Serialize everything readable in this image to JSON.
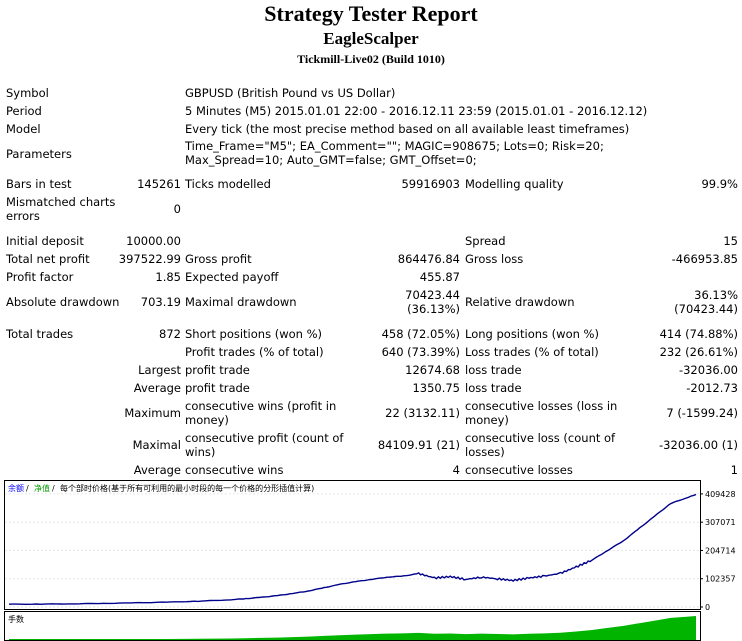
{
  "header": {
    "title": "Strategy Tester Report",
    "expert": "EagleScalper",
    "server": "Tickmill-Live02 (Build 1010)"
  },
  "info": {
    "symbol_label": "Symbol",
    "symbol": "GBPUSD (British Pound vs US Dollar)",
    "period_label": "Period",
    "period": "5 Minutes (M5) 2015.01.01 22:00 - 2016.12.11 23:59 (2015.01.01 - 2016.12.12)",
    "model_label": "Model",
    "model": "Every tick (the most precise method based on all available least timeframes)",
    "parameters_label": "Parameters",
    "parameters": "Time_Frame=\"M5\"; EA_Comment=\"\"; MAGIC=908675; Lots=0; Risk=20; Max_Spread=10; Auto_GMT=false; GMT_Offset=0;"
  },
  "tests": {
    "bars_label": "Bars in test",
    "bars": "145261",
    "ticks_label": "Ticks modelled",
    "ticks": "59916903",
    "quality_label": "Modelling quality",
    "quality": "99.9%",
    "mismatch_label": "Mismatched charts errors",
    "mismatch": "0"
  },
  "results": {
    "initial_deposit_label": "Initial deposit",
    "initial_deposit": "10000.00",
    "spread_label": "Spread",
    "spread": "15",
    "net_profit_label": "Total net profit",
    "net_profit": "397522.99",
    "gross_profit_label": "Gross profit",
    "gross_profit": "864476.84",
    "gross_loss_label": "Gross loss",
    "gross_loss": "-466953.85",
    "profit_factor_label": "Profit factor",
    "profit_factor": "1.85",
    "expected_payoff_label": "Expected payoff",
    "expected_payoff": "455.87",
    "abs_drawdown_label": "Absolute drawdown",
    "abs_drawdown": "703.19",
    "max_drawdown_label": "Maximal drawdown",
    "max_drawdown_1": "70423.44",
    "max_drawdown_2": "(36.13%)",
    "rel_drawdown_label": "Relative drawdown",
    "rel_drawdown_1": "36.13%",
    "rel_drawdown_2": "(70423.44)"
  },
  "trades": {
    "total_label": "Total trades",
    "total": "872",
    "short_label": "Short positions (won %)",
    "short": "458 (72.05%)",
    "long_label": "Long positions (won %)",
    "long": "414 (74.88%)",
    "profit_trades_label": "Profit trades (% of total)",
    "profit_trades": "640 (73.39%)",
    "loss_trades_label": "Loss trades (% of total)",
    "loss_trades": "232 (26.61%)",
    "largest_label": "Largest",
    "largest_profit_label": "profit trade",
    "largest_profit": "12674.68",
    "largest_loss_label": "loss trade",
    "largest_loss": "-32036.00",
    "average_label": "Average",
    "average_profit_label": "profit trade",
    "average_profit": "1350.75",
    "average_loss_label": "loss trade",
    "average_loss": "-2012.73",
    "maximum_label": "Maximum",
    "max_cons_wins_label": "consecutive wins (profit in money)",
    "max_cons_wins": "22 (3132.11)",
    "max_cons_losses_label": "consecutive losses (loss in money)",
    "max_cons_losses": "7 (-1599.24)",
    "maximal_label": "Maximal",
    "maximal_profit_label": "consecutive profit (count of wins)",
    "maximal_profit": "84109.91 (21)",
    "maximal_loss_label": "consecutive loss (count of losses)",
    "maximal_loss": "-32036.00 (1)",
    "average2_label": "Average",
    "avg_cons_wins_label": "consecutive wins",
    "avg_cons_wins": "4",
    "avg_cons_losses_label": "consecutive losses",
    "avg_cons_losses": "1"
  },
  "chart_data": {
    "type": "line",
    "legend": [
      "余额",
      "净值",
      "每个部时价格(基于所有可利用的最小时段的每一个价格的分形插值计算)"
    ],
    "lower_panel_label": "手数",
    "y_ticks": [
      "409428",
      "307071",
      "204714",
      "102357",
      "0"
    ],
    "ylim": [
      0,
      420000
    ],
    "x": [
      0,
      40,
      80,
      120,
      160,
      200,
      240,
      280,
      300,
      320,
      340,
      360,
      380,
      400,
      420,
      440,
      460,
      480,
      500,
      520,
      540,
      560,
      580,
      600,
      620,
      640,
      660,
      680,
      700,
      720,
      740,
      760,
      780,
      800,
      820,
      840,
      860,
      872
    ],
    "series": [
      {
        "values": [
          10000,
          10500,
          11500,
          13000,
          15000,
          17500,
          21000,
          26000,
          30000,
          35000,
          41000,
          49000,
          58000,
          70000,
          82000,
          92000,
          100000,
          108000,
          112000,
          121000,
          105000,
          110000,
          100000,
          108000,
          102000,
          96000,
          105000,
          112000,
          122000,
          145000,
          170000,
          205000,
          240000,
          285000,
          330000,
          375000,
          395000,
          407523
        ],
        "color": "#00008b"
      }
    ],
    "colors": {
      "balance": "#00008b",
      "lots": "#00b400",
      "legend_balance": "#0000ff",
      "legend_equity": "#00a000"
    }
  }
}
